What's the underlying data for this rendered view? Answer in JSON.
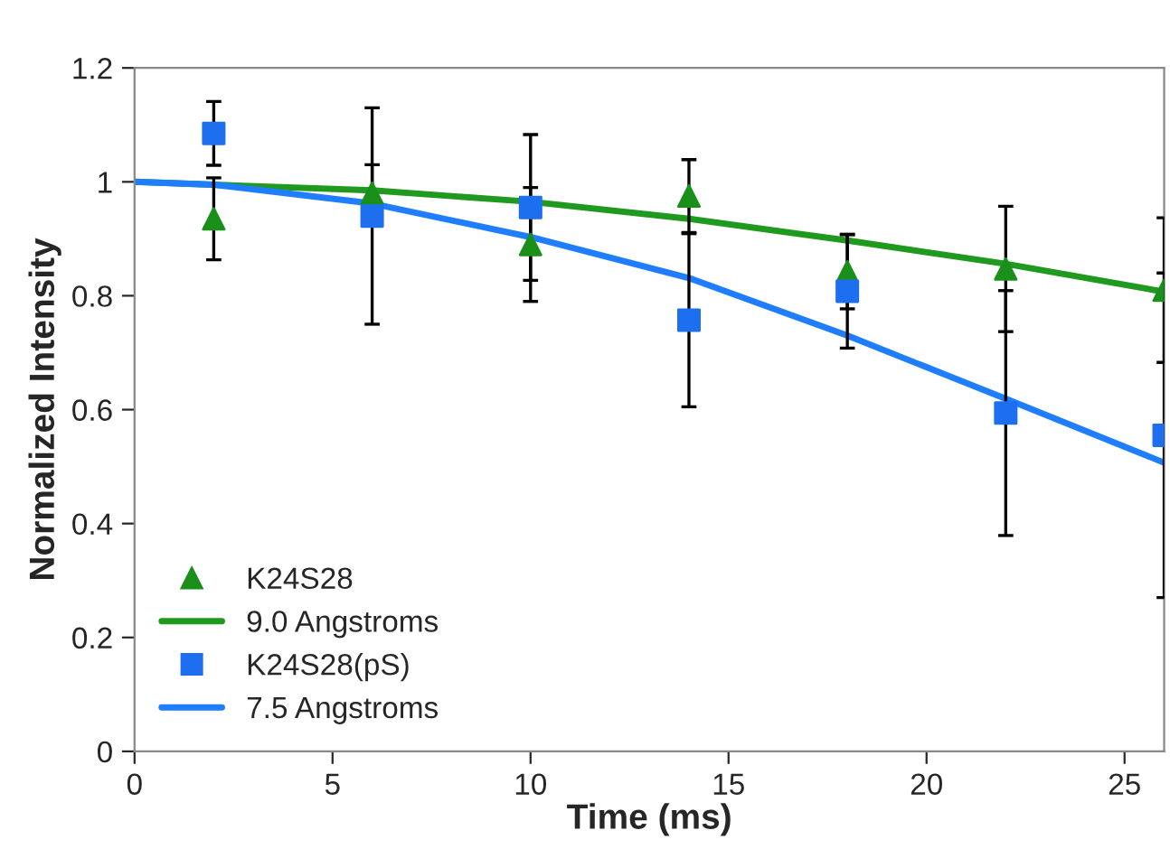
{
  "chart_data": {
    "type": "scatter",
    "xlabel": "Time (ms)",
    "ylabel": "Normalized Intensity",
    "x": [
      2,
      6,
      10,
      14,
      18,
      22,
      26
    ],
    "series": [
      {
        "name": "K24S28",
        "marker": "triangle",
        "color": "#1a8f1a",
        "values": [
          0.935,
          0.98,
          0.89,
          0.975,
          0.842,
          0.847,
          0.81
        ],
        "errors": [
          0.072,
          0.05,
          0.1,
          0.064,
          0.065,
          0.11,
          0.127
        ]
      },
      {
        "name": "9.0 Angstroms",
        "type": "line",
        "marker": "none",
        "line_style": "solid",
        "color": "#1f9a1f",
        "x": [
          0,
          2,
          6,
          10,
          14,
          18,
          22,
          26
        ],
        "values": [
          1,
          0.995,
          0.985,
          0.965,
          0.935,
          0.897,
          0.856,
          0.807
        ]
      },
      {
        "name": "K24S28(pS)",
        "marker": "square",
        "color": "#1e6ff0",
        "values": [
          1.085,
          0.94,
          0.955,
          0.757,
          0.808,
          0.594,
          0.555
        ],
        "errors": [
          0.056,
          0.19,
          0.128,
          0.152,
          0.1,
          0.215,
          0.285
        ]
      },
      {
        "name": "7.5 Angstroms",
        "type": "line",
        "marker": "none",
        "line_style": "solid",
        "color": "#1f7dff",
        "x": [
          0,
          2,
          6,
          10,
          14,
          18,
          22,
          26
        ],
        "values": [
          1,
          0.995,
          0.962,
          0.903,
          0.831,
          0.73,
          0.619,
          0.507
        ]
      }
    ],
    "xlim": [
      0,
      26
    ],
    "xticks": [
      0,
      5,
      10,
      15,
      20,
      25
    ],
    "ylim": [
      0,
      1.2
    ],
    "yticks": [
      0,
      0.2,
      0.4,
      0.6,
      0.8,
      1,
      1.2
    ],
    "grid": false,
    "legend": "bottom left"
  }
}
